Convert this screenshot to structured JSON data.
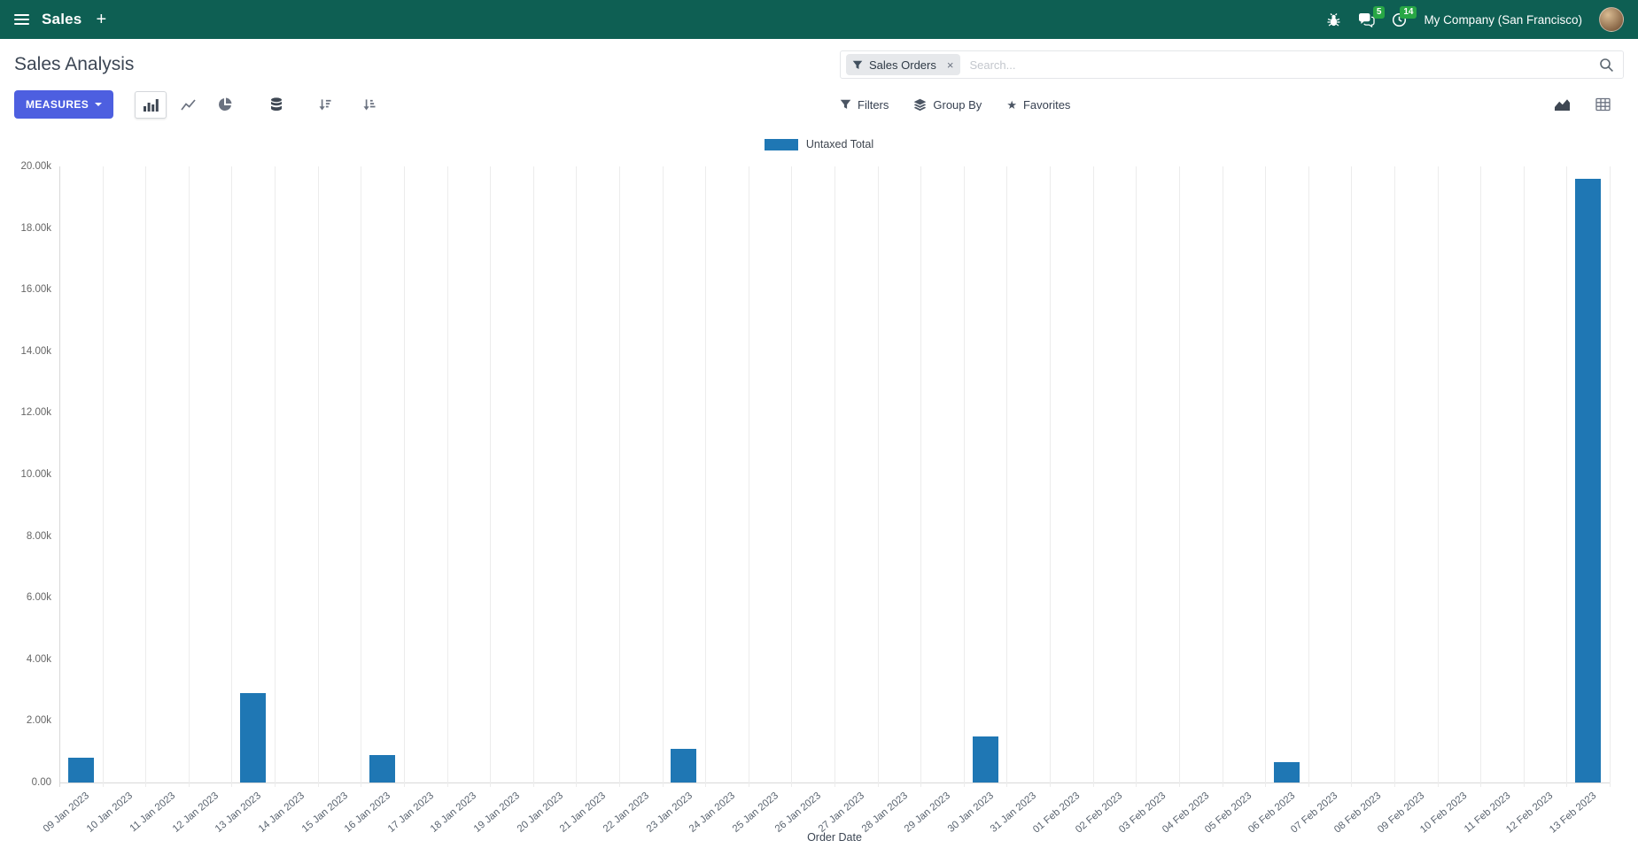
{
  "navbar": {
    "app_name": "Sales",
    "company": "My Company (San Francisco)",
    "message_badge": "5",
    "activity_badge": "14"
  },
  "control_panel": {
    "title": "Sales Analysis",
    "measures_label": "MEASURES",
    "filters_label": "Filters",
    "group_by_label": "Group By",
    "favorites_label": "Favorites",
    "search": {
      "facet_label": "Sales Orders",
      "placeholder": "Search...",
      "remove_glyph": "×"
    }
  },
  "icons": {
    "plus_glyph": "+",
    "star_glyph": "★"
  },
  "colors": {
    "navbar_bg": "#0e5f53",
    "primary_button": "#4d5fe0",
    "badge_green": "#28a745",
    "bar_blue": "#1f77b4",
    "grid_line": "#ececec",
    "axis_line": "#d8d8d8"
  },
  "chart_data": {
    "type": "bar",
    "title": "",
    "xlabel": "Order Date",
    "ylabel": "",
    "ylim": [
      0,
      20000
    ],
    "y_tick_step": 2000,
    "y_ticks": [
      "0.00",
      "2.00k",
      "4.00k",
      "6.00k",
      "8.00k",
      "10.00k",
      "12.00k",
      "14.00k",
      "16.00k",
      "18.00k",
      "20.00k"
    ],
    "grid": "vertical",
    "legend_position": "top",
    "categories": [
      "09 Jan 2023",
      "10 Jan 2023",
      "11 Jan 2023",
      "12 Jan 2023",
      "13 Jan 2023",
      "14 Jan 2023",
      "15 Jan 2023",
      "16 Jan 2023",
      "17 Jan 2023",
      "18 Jan 2023",
      "19 Jan 2023",
      "20 Jan 2023",
      "21 Jan 2023",
      "22 Jan 2023",
      "23 Jan 2023",
      "24 Jan 2023",
      "25 Jan 2023",
      "26 Jan 2023",
      "27 Jan 2023",
      "28 Jan 2023",
      "29 Jan 2023",
      "30 Jan 2023",
      "31 Jan 2023",
      "01 Feb 2023",
      "02 Feb 2023",
      "03 Feb 2023",
      "04 Feb 2023",
      "05 Feb 2023",
      "06 Feb 2023",
      "07 Feb 2023",
      "08 Feb 2023",
      "09 Feb 2023",
      "10 Feb 2023",
      "11 Feb 2023",
      "12 Feb 2023",
      "13 Feb 2023"
    ],
    "series": [
      {
        "name": "Untaxed Total",
        "color": "#1f77b4",
        "values": [
          800,
          0,
          0,
          0,
          2900,
          0,
          0,
          900,
          0,
          0,
          0,
          0,
          0,
          0,
          1100,
          0,
          0,
          0,
          0,
          0,
          0,
          1500,
          0,
          0,
          0,
          0,
          0,
          0,
          650,
          0,
          0,
          0,
          0,
          0,
          0,
          19600
        ]
      }
    ]
  }
}
